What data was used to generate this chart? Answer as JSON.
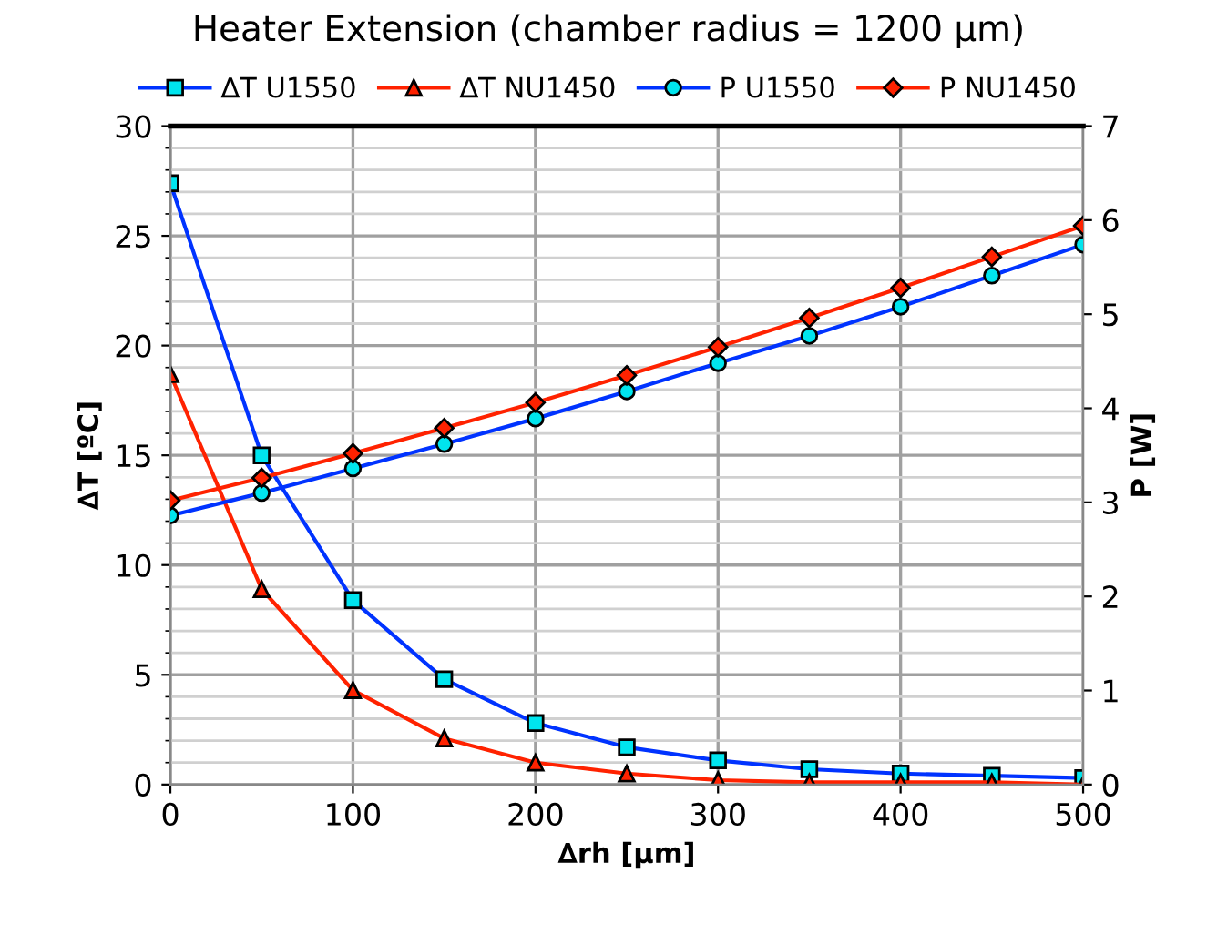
{
  "chart_data": {
    "type": "line",
    "title": "Heater Extension (chamber radius = 1200 µm)",
    "xlabel": "∆rh [µm]",
    "ylabel": "∆T [ºC]",
    "y2label": "P [W]",
    "x": [
      0,
      50,
      100,
      150,
      200,
      250,
      300,
      350,
      400,
      450,
      500
    ],
    "series": [
      {
        "name": "∆T U1550",
        "color": "#0033ff",
        "marker": "square",
        "values": [
          27.4,
          15.0,
          8.4,
          4.8,
          2.8,
          1.7,
          1.1,
          0.7,
          0.5,
          0.4,
          0.3
        ]
      },
      {
        "name": "∆T NU1450",
        "color": "#ff2200",
        "marker": "triangle",
        "values": [
          18.7,
          8.9,
          4.3,
          2.1,
          1.0,
          0.5,
          0.2,
          0.1,
          0.1,
          0.1,
          0.0
        ]
      },
      {
        "name": "P U1550",
        "color": "#0033ff",
        "marker": "circle",
        "axis": "y2",
        "values": [
          2.86,
          3.1,
          3.36,
          3.62,
          3.89,
          4.18,
          4.48,
          4.77,
          5.08,
          5.41,
          5.74
        ]
      },
      {
        "name": "P NU1450",
        "color": "#ff2200",
        "marker": "diamond",
        "axis": "y2",
        "values": [
          3.02,
          3.26,
          3.52,
          3.79,
          4.06,
          4.35,
          4.65,
          4.96,
          5.28,
          5.61,
          5.94
        ]
      }
    ],
    "xlim": [
      0,
      500
    ],
    "xticks": [
      0,
      100,
      200,
      300,
      400,
      500
    ],
    "ylim": [
      0,
      30
    ],
    "yticks": [
      0,
      5,
      10,
      15,
      20,
      25,
      30
    ],
    "y2lim": [
      0,
      7
    ],
    "y2ticks": [
      0,
      1,
      2,
      3,
      4,
      5,
      6,
      7
    ],
    "grid": true,
    "legend": "top"
  }
}
